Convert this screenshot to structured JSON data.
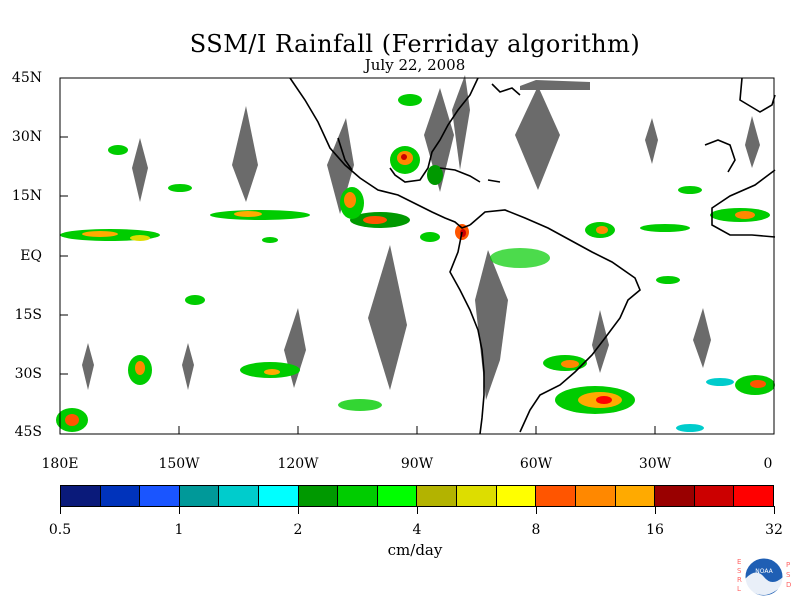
{
  "title": "SSM/I Rainfall (Ferriday algorithm)",
  "date": "July 22, 2008",
  "lat_labels": [
    "45N",
    "30N",
    "15N",
    "EQ",
    "15S",
    "30S",
    "45S"
  ],
  "lon_labels": [
    "180E",
    "150W",
    "120W",
    "90W",
    "60W",
    "30W",
    "0"
  ],
  "colorbar": {
    "unit": "cm/day",
    "labels": [
      "0.5",
      "1",
      "2",
      "4",
      "8",
      "16",
      "32"
    ],
    "colors": [
      "#0a1a7a",
      "#0033bb",
      "#1a55ff",
      "#009999",
      "#00cccc",
      "#00ffff",
      "#009900",
      "#00cc00",
      "#00ff00",
      "#b3b300",
      "#dddd00",
      "#ffff00",
      "#ff5500",
      "#ff8800",
      "#ffaa00",
      "#990000",
      "#cc0000",
      "#ff0000"
    ]
  },
  "logo": {
    "text": "NOAA",
    "left_letters": [
      "E",
      "S",
      "R",
      "L"
    ],
    "right_letters": [
      "P",
      "S",
      "D"
    ]
  },
  "colors": {
    "land_outline": "#000000",
    "missing_data_swath": "#6b6b6b",
    "background": "#ffffff"
  }
}
